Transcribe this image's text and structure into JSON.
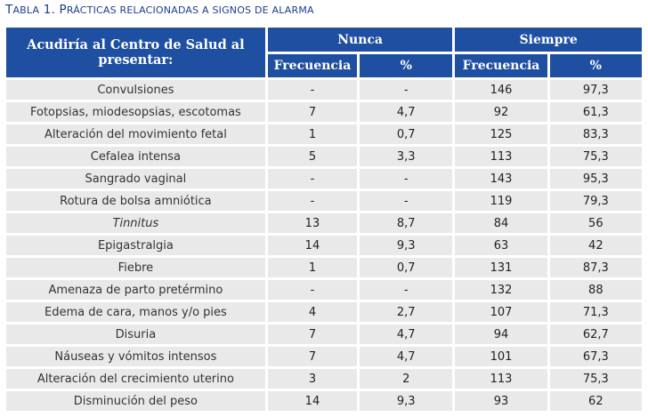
{
  "caption": {
    "prefix": "T",
    "small": "ABLA",
    "number": " 1. P",
    "rest": "RÁCTICAS RELACIONADAS A SIGNOS DE ALARMA"
  },
  "table": {
    "header_main": "Acudiría al Centro de Salud al presentar:",
    "group_nunca": "Nunca",
    "group_siempre": "Siempre",
    "sub_freq": "Frecuencia",
    "sub_pct": "%",
    "rows": [
      {
        "label": "Convulsiones",
        "n_freq": "-",
        "n_pct": "-",
        "s_freq": "146",
        "s_pct": "97,3"
      },
      {
        "label": "Fotopsias, miodesopsias, escotomas",
        "n_freq": "7",
        "n_pct": "4,7",
        "s_freq": "92",
        "s_pct": "61,3"
      },
      {
        "label": "Alteración del movimiento fetal",
        "n_freq": "1",
        "n_pct": "0,7",
        "s_freq": "125",
        "s_pct": "83,3"
      },
      {
        "label": "Cefalea intensa",
        "n_freq": "5",
        "n_pct": "3,3",
        "s_freq": "113",
        "s_pct": "75,3"
      },
      {
        "label": "Sangrado vaginal",
        "n_freq": "-",
        "n_pct": "-",
        "s_freq": "143",
        "s_pct": "95,3"
      },
      {
        "label": "Rotura de bolsa amniótica",
        "n_freq": "-",
        "n_pct": "-",
        "s_freq": "119",
        "s_pct": "79,3"
      },
      {
        "label": "Tinnitus",
        "n_freq": "13",
        "n_pct": "8,7",
        "s_freq": "84",
        "s_pct": "56"
      },
      {
        "label": "Epigastralgia",
        "n_freq": "14",
        "n_pct": "9,3",
        "s_freq": "63",
        "s_pct": "42"
      },
      {
        "label": "Fiebre",
        "n_freq": "1",
        "n_pct": "0,7",
        "s_freq": "131",
        "s_pct": "87,3"
      },
      {
        "label": "Amenaza de parto pretérmino",
        "n_freq": "-",
        "n_pct": "-",
        "s_freq": "132",
        "s_pct": "88"
      },
      {
        "label": "Edema de cara, manos y/o pies",
        "n_freq": "4",
        "n_pct": "2,7",
        "s_freq": "107",
        "s_pct": "71,3"
      },
      {
        "label": "Disuria",
        "n_freq": "7",
        "n_pct": "4,7",
        "s_freq": "94",
        "s_pct": "62,7"
      },
      {
        "label": "Náuseas y vómitos intensos",
        "n_freq": "7",
        "n_pct": "4,7",
        "s_freq": "101",
        "s_pct": "67,3"
      },
      {
        "label": "Alteración del crecimiento uterino",
        "n_freq": "3",
        "n_pct": "2",
        "s_freq": "113",
        "s_pct": "75,3"
      },
      {
        "label": "Disminución del peso",
        "n_freq": "14",
        "n_pct": "9,3",
        "s_freq": "93",
        "s_pct": "62"
      }
    ]
  }
}
